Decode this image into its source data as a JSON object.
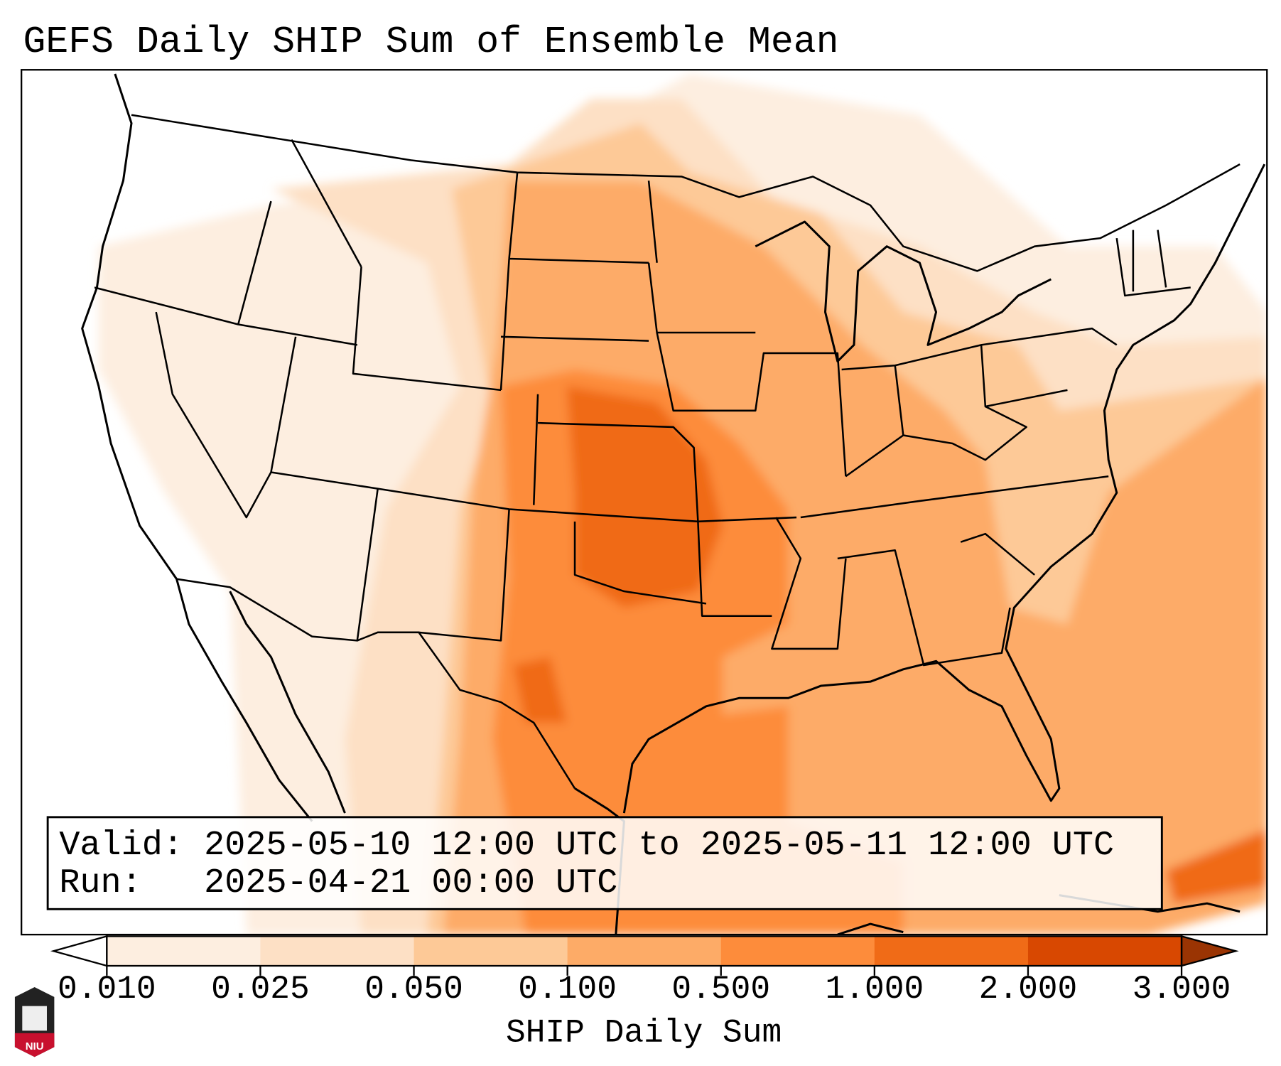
{
  "title": "GEFS Daily SHIP Sum of Ensemble Mean",
  "info_box": {
    "valid_line": "Valid: 2025-05-10 12:00 UTC to 2025-05-11 12:00 UTC",
    "run_line": "Run:   2025-04-21 00:00 UTC"
  },
  "colorbar": {
    "label": "SHIP Daily Sum",
    "ticks": [
      "0.010",
      "0.025",
      "0.050",
      "0.100",
      "0.500",
      "1.000",
      "2.000",
      "3.000"
    ],
    "colors": [
      "#fdeee0",
      "#fde0c5",
      "#fdc997",
      "#fdab67",
      "#fd8c3b",
      "#f06b17",
      "#d84801"
    ],
    "under_color": "#ffffff",
    "over_color": "#9a3403"
  },
  "logo": {
    "text": "NIU",
    "color": "#c8102e"
  },
  "chart_data": {
    "type": "heatmap",
    "title": "GEFS Daily SHIP Sum of Ensemble Mean",
    "colorbar_label": "SHIP Daily Sum",
    "levels": [
      0.01,
      0.025,
      0.05,
      0.1,
      0.5,
      1.0,
      2.0,
      3.0
    ],
    "extend": "both",
    "max_region": "Kansas / Oklahoma (1.0–2.0)"
  }
}
